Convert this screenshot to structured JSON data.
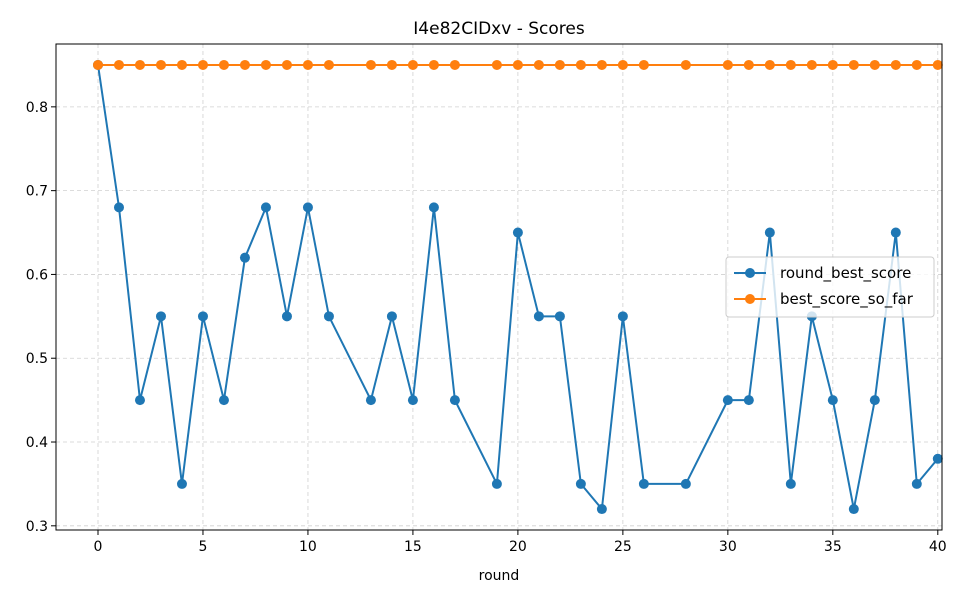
{
  "chart_data": {
    "type": "line",
    "title": "I4e82CIDxv - Scores",
    "xlabel": "round",
    "ylabel": "",
    "xlim": [
      -2,
      40.2
    ],
    "ylim": [
      0.295,
      0.875
    ],
    "xticks": [
      0,
      5,
      10,
      15,
      20,
      25,
      30,
      35,
      40
    ],
    "yticks": [
      0.3,
      0.4,
      0.5,
      0.6,
      0.7,
      0.8
    ],
    "grid": true,
    "legend_position": "center-right",
    "series": [
      {
        "name": "round_best_score",
        "color": "#1f77b4",
        "x": [
          0,
          1,
          2,
          3,
          4,
          5,
          6,
          7,
          8,
          9,
          10,
          11,
          13,
          14,
          15,
          16,
          17,
          19,
          20,
          21,
          22,
          23,
          24,
          25,
          26,
          28,
          30,
          31,
          32,
          33,
          34,
          35,
          36,
          37,
          38,
          39,
          40
        ],
        "y": [
          0.85,
          0.68,
          0.45,
          0.55,
          0.35,
          0.55,
          0.45,
          0.62,
          0.68,
          0.55,
          0.68,
          0.55,
          0.45,
          0.55,
          0.45,
          0.68,
          0.45,
          0.35,
          0.65,
          0.55,
          0.55,
          0.35,
          0.32,
          0.55,
          0.35,
          0.35,
          0.45,
          0.45,
          0.65,
          0.35,
          0.55,
          0.45,
          0.32,
          0.45,
          0.65,
          0.35,
          0.38
        ]
      },
      {
        "name": "best_score_so_far",
        "color": "#ff7f0e",
        "x": [
          0,
          1,
          2,
          3,
          4,
          5,
          6,
          7,
          8,
          9,
          10,
          11,
          13,
          14,
          15,
          16,
          17,
          19,
          20,
          21,
          22,
          23,
          24,
          25,
          26,
          28,
          30,
          31,
          32,
          33,
          34,
          35,
          36,
          37,
          38,
          39,
          40
        ],
        "y": [
          0.85,
          0.85,
          0.85,
          0.85,
          0.85,
          0.85,
          0.85,
          0.85,
          0.85,
          0.85,
          0.85,
          0.85,
          0.85,
          0.85,
          0.85,
          0.85,
          0.85,
          0.85,
          0.85,
          0.85,
          0.85,
          0.85,
          0.85,
          0.85,
          0.85,
          0.85,
          0.85,
          0.85,
          0.85,
          0.85,
          0.85,
          0.85,
          0.85,
          0.85,
          0.85,
          0.85,
          0.85
        ]
      }
    ]
  }
}
